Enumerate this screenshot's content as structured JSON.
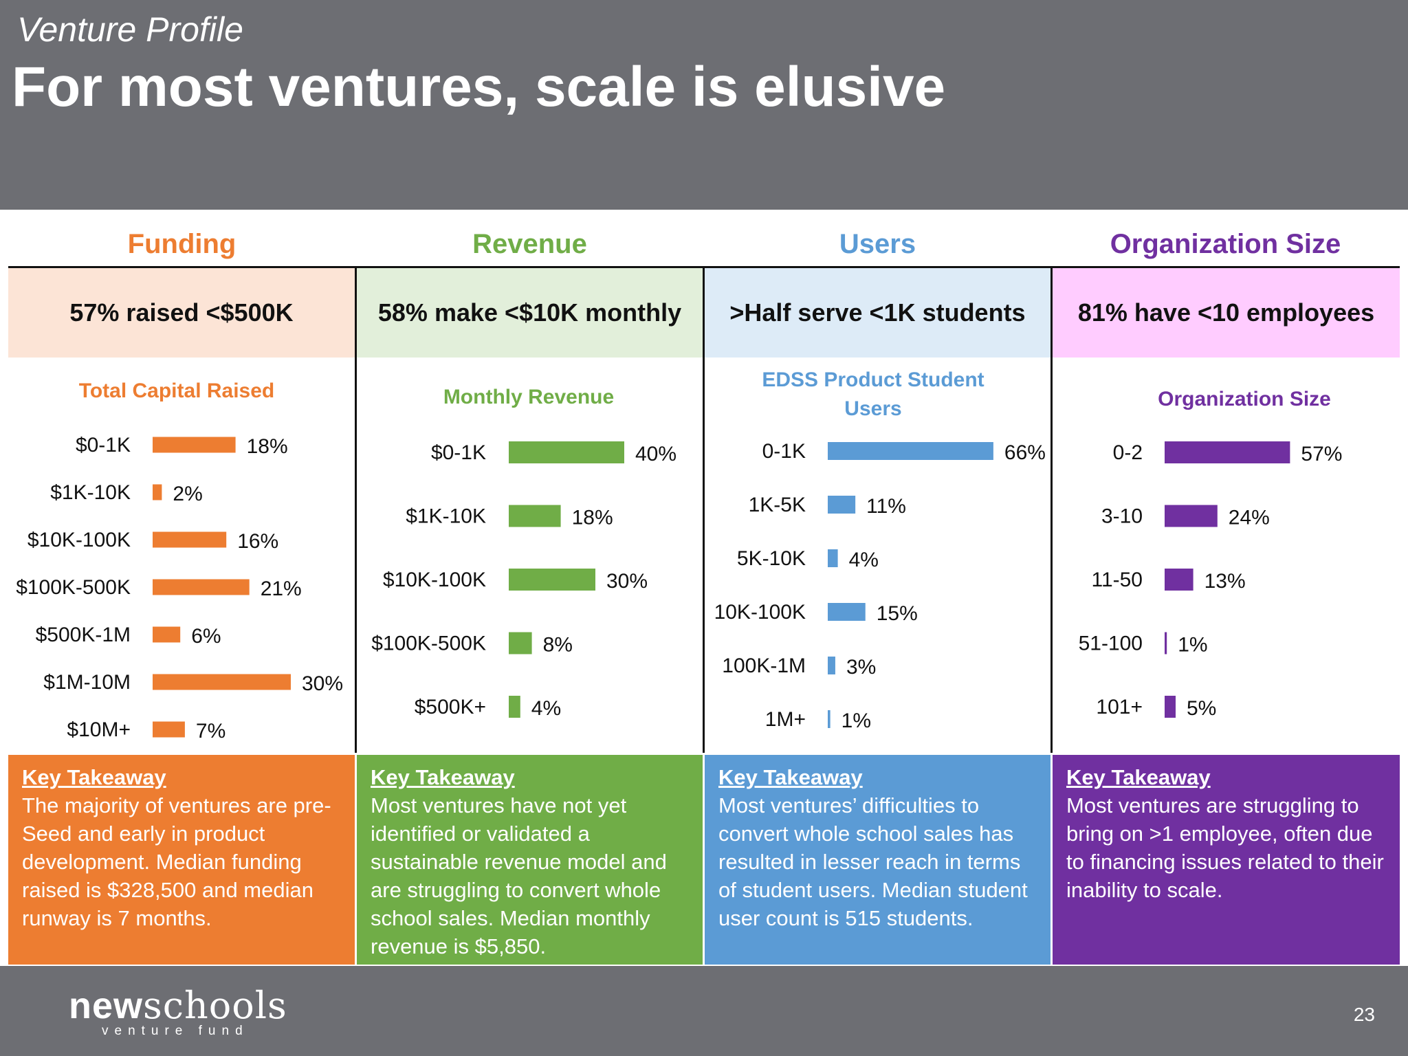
{
  "header": {
    "subtitle": "Venture Profile",
    "title": "For most ventures, scale is elusive"
  },
  "columns": [
    {
      "heading": "Funding",
      "stat": "57% raised <$500K",
      "chart_title": "Total Capital Raised",
      "takeaway_heading": "Key Takeaway",
      "takeaway_text": "The majority of ventures are pre-Seed and early in product development. Median funding raised is $328,500 and median runway is 7 months."
    },
    {
      "heading": "Revenue",
      "stat": "58% make <$10K monthly",
      "chart_title": "Monthly Revenue",
      "takeaway_heading": "Key Takeaway",
      "takeaway_text": "Most ventures have not yet identified or validated a sustainable revenue model and are struggling to convert whole school sales. Median monthly revenue is $5,850."
    },
    {
      "heading": "Users",
      "stat": ">Half serve <1K students",
      "chart_title": "EDSS Product Student Users",
      "takeaway_heading": "Key Takeaway",
      "takeaway_text": "Most ventures’ difficulties to convert whole school sales has resulted in lesser reach in terms of student users. Median student user count is 515 students."
    },
    {
      "heading": "Organization Size",
      "stat": "81% have <10 employees",
      "chart_title": "Organization Size",
      "takeaway_heading": "Key Takeaway",
      "takeaway_text": "Most ventures are struggling to bring on >1 employee, often due to financing issues related to their inability to scale."
    }
  ],
  "colors": {
    "funding": "#ed7d31",
    "revenue": "#70ad47",
    "users": "#5b9bd5",
    "org": "#7030a0",
    "funding_light": "#fce4d6",
    "revenue_light": "#e2efda",
    "users_light": "#ddebf7",
    "org_light": "#ffccff",
    "header_gray": "#6d6e73"
  },
  "chart_data": [
    {
      "type": "bar",
      "orientation": "horizontal",
      "title": "Total Capital Raised",
      "categories": [
        "$0-1K",
        "$1K-10K",
        "$10K-100K",
        "$100K-500K",
        "$500K-1M",
        "$1M-10M",
        "$10M+"
      ],
      "values": [
        18,
        2,
        16,
        21,
        6,
        30,
        7
      ],
      "labels": [
        "18%",
        "2%",
        "16%",
        "21%",
        "6%",
        "30%",
        "7%"
      ],
      "color": "#ed7d31"
    },
    {
      "type": "bar",
      "orientation": "horizontal",
      "title": "Monthly Revenue",
      "categories": [
        "$0-1K",
        "$1K-10K",
        "$10K-100K",
        "$100K-500K",
        "$500K+"
      ],
      "values": [
        40,
        18,
        30,
        8,
        4
      ],
      "labels": [
        "40%",
        "18%",
        "30%",
        "8%",
        "4%"
      ],
      "color": "#70ad47"
    },
    {
      "type": "bar",
      "orientation": "horizontal",
      "title": "EDSS Product Student Users",
      "categories": [
        "0-1K",
        "1K-5K",
        "5K-10K",
        "10K-100K",
        "100K-1M",
        "1M+"
      ],
      "values": [
        66,
        11,
        4,
        15,
        3,
        1
      ],
      "labels": [
        "66%",
        "11%",
        "4%",
        "15%",
        "3%",
        "1%"
      ],
      "color": "#5b9bd5"
    },
    {
      "type": "bar",
      "orientation": "horizontal",
      "title": "Organization Size",
      "categories": [
        "0-2",
        "3-10",
        "11-50",
        "51-100",
        "101+"
      ],
      "values": [
        57,
        24,
        13,
        1,
        5
      ],
      "labels": [
        "57%",
        "24%",
        "13%",
        "1%",
        "5%"
      ],
      "color": "#7030a0"
    }
  ],
  "footer": {
    "logo_bold": "new",
    "logo_rest": "schools",
    "logo_sub": "venture fund",
    "page_number": "23"
  }
}
